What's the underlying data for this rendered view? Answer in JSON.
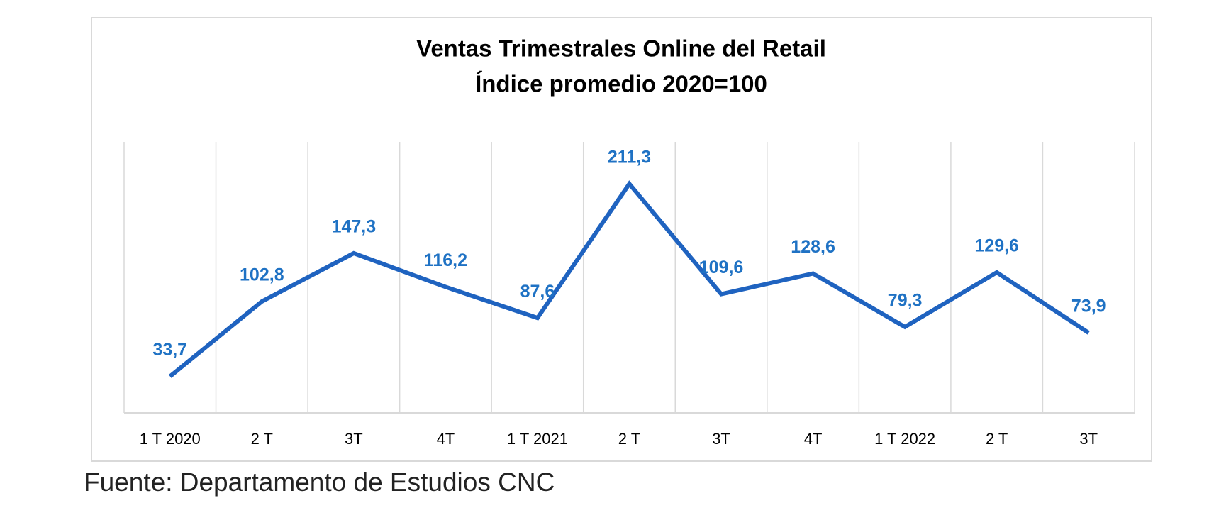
{
  "chart_data": {
    "type": "line",
    "title": "Ventas Trimestrales Online del Retail",
    "subtitle": "Índice promedio 2020=100",
    "categories": [
      "1 T 2020",
      "2 T",
      "3T",
      "4T",
      "1 T 2021",
      "2 T",
      "3T",
      "4T",
      "1 T 2022",
      "2 T",
      "3T"
    ],
    "values": [
      33.7,
      102.8,
      147.3,
      116.2,
      87.6,
      211.3,
      109.6,
      128.6,
      79.3,
      129.6,
      73.9
    ],
    "value_labels": [
      "33,7",
      "102,8",
      "147,3",
      "116,2",
      "87,6",
      "211,3",
      "109,6",
      "128,6",
      "79,3",
      "129,6",
      "73,9"
    ],
    "color": "#1f63c0",
    "label_color": "#1f72c4",
    "ylim": [
      0,
      250
    ],
    "grid": "x",
    "source": "Fuente: Departamento de Estudios CNC"
  }
}
